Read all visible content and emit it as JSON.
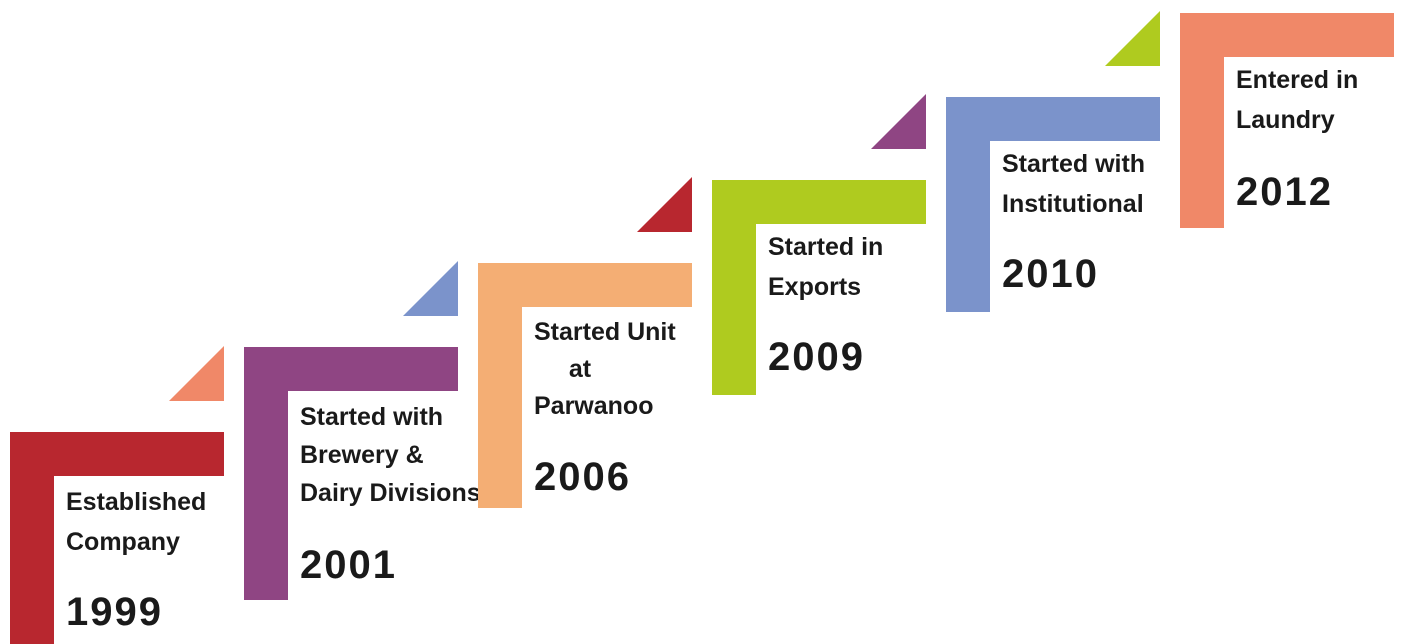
{
  "steps": [
    {
      "label": [
        "Established",
        "Company"
      ],
      "year": "1999",
      "color": "#b8272f",
      "triangle_color": "#f08868"
    },
    {
      "label": [
        "Started with",
        "Brewery &",
        "Dairy Divisions"
      ],
      "year": "2001",
      "color": "#8f4583",
      "triangle_color": "#7b93cb"
    },
    {
      "label": [
        "Started Unit",
        "at",
        "Parwanoo"
      ],
      "year": "2006",
      "color": "#f4ae74",
      "triangle_color": "#b8272f"
    },
    {
      "label": [
        "Started in",
        "Exports"
      ],
      "year": "2009",
      "color": "#afcb1f",
      "triangle_color": "#8f4583"
    },
    {
      "label": [
        "Started with",
        "Institutional"
      ],
      "year": "2010",
      "color": "#7b93cb",
      "triangle_color": "#afcb1f"
    },
    {
      "label": [
        "Entered in",
        "Laundry"
      ],
      "year": "2012",
      "color": "#f08868",
      "triangle_color": null
    }
  ]
}
